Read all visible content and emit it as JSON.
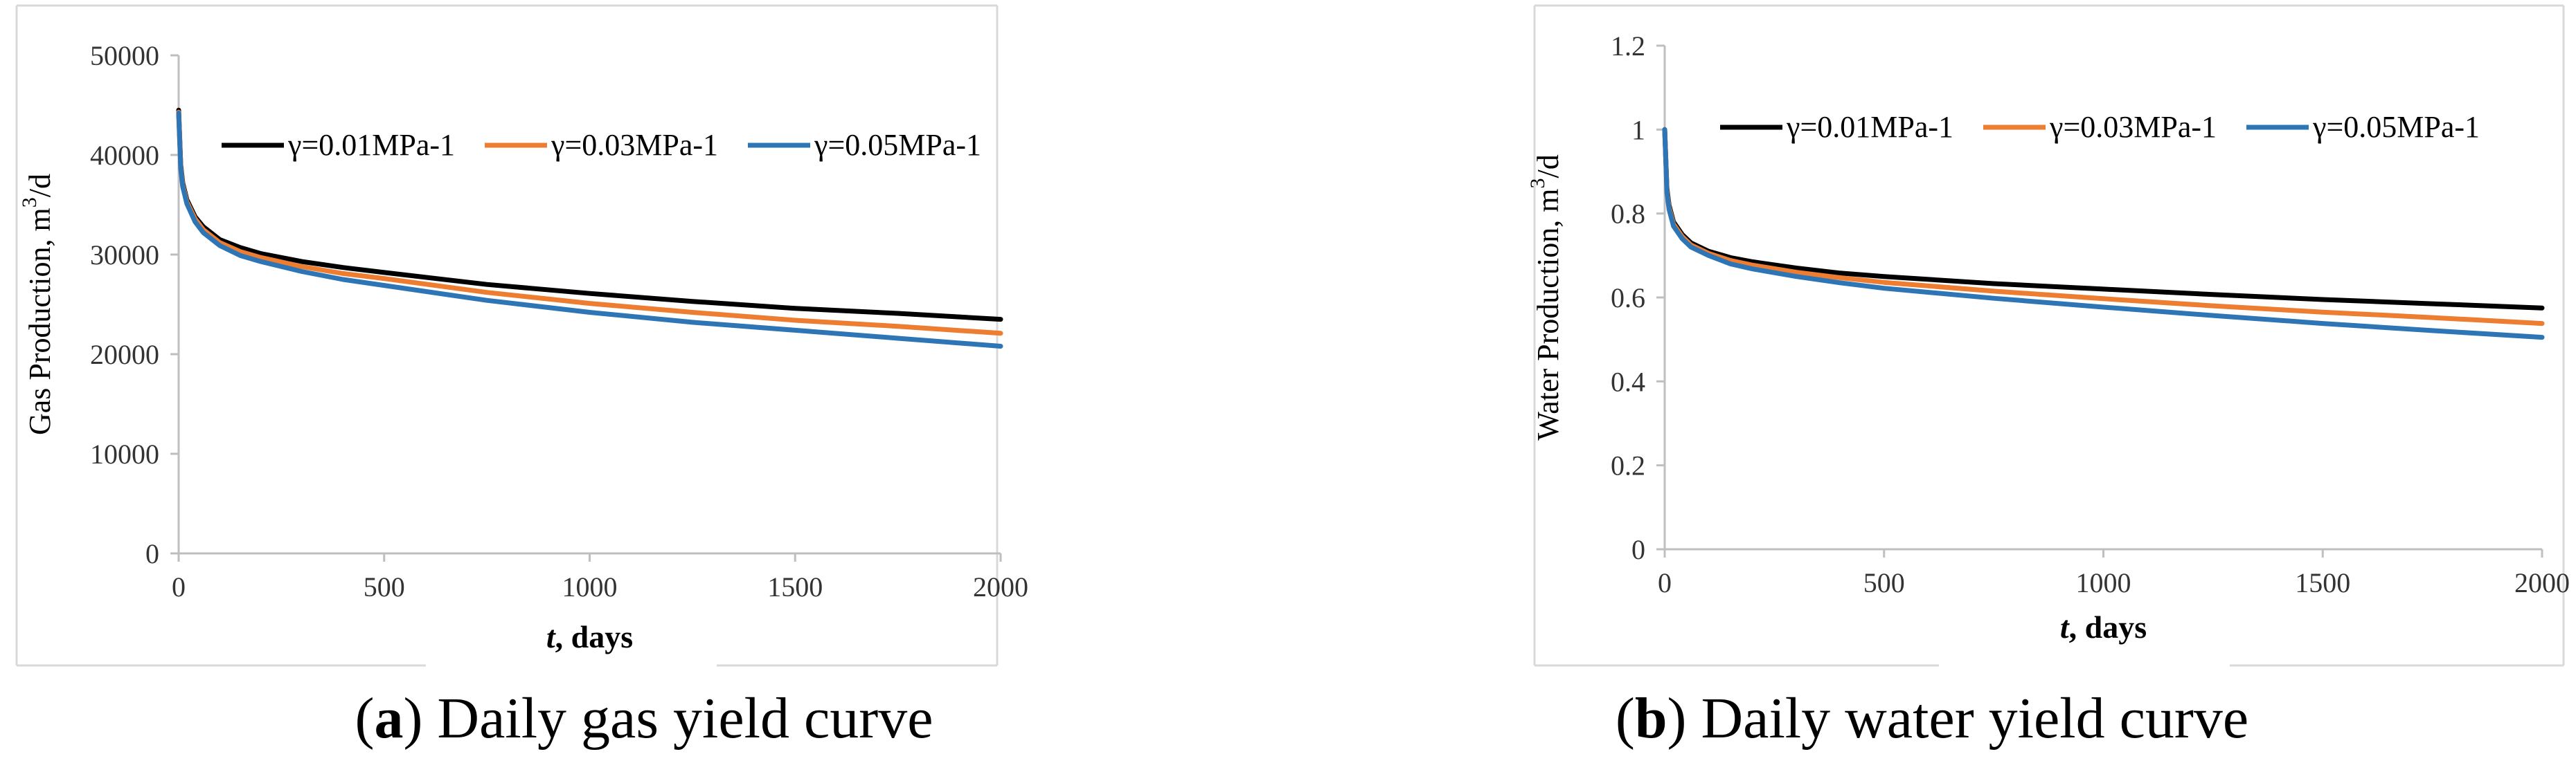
{
  "chart_data": [
    {
      "type": "line",
      "id": "a",
      "ylabel": "Gas Production, m³/d",
      "ylabel_main": "Gas Production, m",
      "ylabel_sup": "3",
      "ylabel_tail": "/d",
      "xlabel_italic": "t",
      "xlabel_rest": ", days",
      "xlim": [
        0,
        2000
      ],
      "ylim": [
        0,
        50000
      ],
      "xticks": [
        "0",
        "500",
        "1000",
        "1500",
        "2000"
      ],
      "yticks": [
        "0",
        "10000",
        "20000",
        "30000",
        "40000",
        "50000"
      ],
      "x": [
        0,
        5,
        10,
        20,
        40,
        60,
        100,
        150,
        200,
        300,
        400,
        500,
        750,
        1000,
        1250,
        1500,
        1750,
        2000
      ],
      "series": [
        {
          "name": "γ=0.01MPa-1",
          "color": "#000000",
          "values": [
            44500,
            39000,
            37200,
            35500,
            33800,
            32800,
            31500,
            30700,
            30100,
            29300,
            28700,
            28200,
            27000,
            26100,
            25300,
            24600,
            24100,
            23500
          ]
        },
        {
          "name": "γ=0.03MPa-1",
          "color": "#ED7D31",
          "values": [
            44300,
            38800,
            37000,
            35300,
            33600,
            32500,
            31200,
            30300,
            29700,
            28800,
            28100,
            27600,
            26200,
            25100,
            24200,
            23400,
            22800,
            22100
          ]
        },
        {
          "name": "γ=0.05MPa-1",
          "color": "#2E75B6",
          "values": [
            44200,
            38600,
            36800,
            35100,
            33300,
            32200,
            30900,
            29900,
            29300,
            28300,
            27500,
            26900,
            25400,
            24200,
            23200,
            22400,
            21600,
            20800
          ]
        }
      ],
      "caption_letter": "a",
      "caption_text": ") Daily gas yield curve",
      "caption_open": "("
    },
    {
      "type": "line",
      "id": "b",
      "ylabel": "Water Production, m³/d",
      "ylabel_main": "Water Production, m",
      "ylabel_sup": "3",
      "ylabel_tail": "/d",
      "xlabel_italic": "t",
      "xlabel_rest": ", days",
      "xlim": [
        0,
        2000
      ],
      "ylim": [
        0,
        1.2
      ],
      "xticks": [
        "0",
        "500",
        "1000",
        "1500",
        "2000"
      ],
      "yticks": [
        "0",
        "0.2",
        "0.4",
        "0.6",
        "0.8",
        "1",
        "1.2"
      ],
      "x": [
        0,
        5,
        10,
        20,
        40,
        60,
        100,
        150,
        200,
        300,
        400,
        500,
        750,
        1000,
        1250,
        1500,
        1750,
        2000
      ],
      "series": [
        {
          "name": "γ=0.01MPa-1",
          "color": "#000000",
          "values": [
            1.0,
            0.86,
            0.82,
            0.78,
            0.75,
            0.73,
            0.71,
            0.695,
            0.685,
            0.67,
            0.658,
            0.65,
            0.633,
            0.62,
            0.607,
            0.595,
            0.585,
            0.575
          ]
        },
        {
          "name": "γ=0.03MPa-1",
          "color": "#ED7D31",
          "values": [
            1.0,
            0.855,
            0.815,
            0.775,
            0.745,
            0.725,
            0.705,
            0.688,
            0.677,
            0.66,
            0.647,
            0.636,
            0.615,
            0.597,
            0.58,
            0.565,
            0.552,
            0.538
          ]
        },
        {
          "name": "γ=0.05MPa-1",
          "color": "#2E75B6",
          "values": [
            1.0,
            0.85,
            0.81,
            0.77,
            0.74,
            0.72,
            0.7,
            0.68,
            0.668,
            0.65,
            0.635,
            0.622,
            0.598,
            0.577,
            0.557,
            0.538,
            0.521,
            0.505
          ]
        }
      ],
      "caption_letter": "b",
      "caption_text": ") Daily water yield curve",
      "caption_open": "("
    }
  ]
}
